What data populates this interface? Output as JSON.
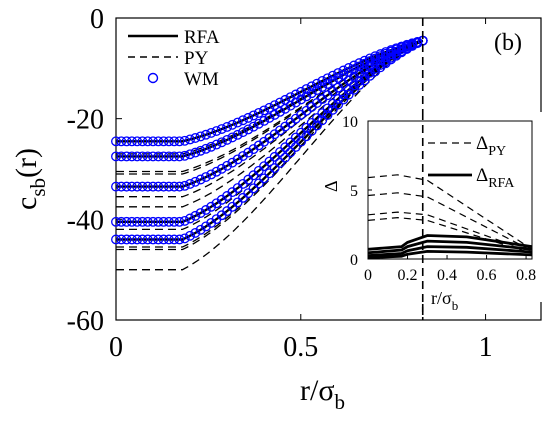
{
  "chart_data": [
    {
      "type": "line",
      "panel_label": "(b)",
      "xlabel": "r/σ",
      "xlabel_sub": "b",
      "ylabel": "c",
      "ylabel_sub": "sb",
      "ylabel_suffix": "(r)",
      "xlim": [
        0,
        1.15
      ],
      "ylim": [
        -60,
        0
      ],
      "xticks": [
        0,
        0.5,
        1
      ],
      "xtick_labels": [
        "0",
        "0.5",
        "1"
      ],
      "yticks": [
        -60,
        -40,
        -20,
        0
      ],
      "ytick_labels": [
        "-60",
        "-40",
        "-20",
        "0"
      ],
      "vline_x": 0.83,
      "legend": {
        "placement": "top-left",
        "entries": [
          {
            "label": "RFA",
            "style": "solid"
          },
          {
            "label": "PY",
            "style": "dashed"
          },
          {
            "label": "WM",
            "style": "circle-marker"
          }
        ]
      },
      "x_end": 0.83,
      "y_end": -4.5,
      "x_knee": 0.18,
      "series": [
        {
          "model": "RFA",
          "plateau": [
            -24.5,
            -27.5,
            -33.5,
            -40.5,
            -44
          ]
        },
        {
          "model": "PY",
          "plateau": [
            -27,
            -30.5,
            -37.5,
            -45.5,
            -50
          ]
        },
        {
          "model": "PY",
          "plateau": [
            -31,
            -35.5,
            -42,
            -46
          ]
        },
        {
          "model": "WM",
          "plateau": [
            -24.5,
            -27.5,
            -33.5,
            -40.5,
            -44
          ]
        }
      ],
      "series_colors": {
        "RFA": "#000000",
        "PY": "#000000",
        "WM": "#0000ff"
      }
    },
    {
      "type": "line",
      "xlabel": "r/σ",
      "xlabel_sub": "b",
      "ylabel": "Δ",
      "xlim": [
        0,
        0.83
      ],
      "ylim": [
        0,
        10
      ],
      "xticks": [
        0,
        0.2,
        0.4,
        0.6,
        0.8
      ],
      "xtick_labels": [
        "0",
        "0.2",
        "0.4",
        "0.6",
        "0.8"
      ],
      "yticks": [
        0,
        5,
        10
      ],
      "ytick_labels": [
        "0",
        "5",
        "10"
      ],
      "legend": {
        "placement": "top-right",
        "entries": [
          {
            "label": "Δ",
            "sub": "PY",
            "style": "dashed"
          },
          {
            "label": "Δ",
            "sub": "RFA",
            "style": "solid"
          }
        ]
      },
      "series": [
        {
          "name": "Δ PY",
          "style": "dashed",
          "x": [
            0,
            0.15,
            0.3,
            0.83
          ],
          "y": [
            5.9,
            6.1,
            5.7,
            0.7
          ]
        },
        {
          "name": "Δ PY",
          "style": "dashed",
          "x": [
            0,
            0.15,
            0.3,
            0.83
          ],
          "y": [
            4.6,
            4.8,
            4.5,
            0.6
          ]
        },
        {
          "name": "Δ PY",
          "style": "dashed",
          "x": [
            0,
            0.15,
            0.3,
            0.83
          ],
          "y": [
            3.2,
            3.4,
            3.2,
            0.5
          ]
        },
        {
          "name": "Δ PY",
          "style": "dashed",
          "x": [
            0,
            0.15,
            0.3,
            0.83
          ],
          "y": [
            2.8,
            3.0,
            2.8,
            0.4
          ]
        },
        {
          "name": "Δ RFA",
          "style": "solid",
          "x": [
            0,
            0.17,
            0.2,
            0.3,
            0.5,
            0.83
          ],
          "y": [
            0.7,
            0.9,
            1.2,
            1.7,
            1.6,
            0.9
          ]
        },
        {
          "name": "Δ RFA",
          "style": "solid",
          "x": [
            0,
            0.17,
            0.2,
            0.3,
            0.5,
            0.83
          ],
          "y": [
            0.45,
            0.65,
            0.9,
            1.3,
            1.2,
            0.7
          ]
        },
        {
          "name": "Δ RFA",
          "style": "solid",
          "x": [
            0,
            0.17,
            0.2,
            0.3,
            0.5,
            0.83
          ],
          "y": [
            0.25,
            0.4,
            0.6,
            0.9,
            0.85,
            0.5
          ]
        },
        {
          "name": "Δ RFA",
          "style": "solid",
          "x": [
            0,
            0.17,
            0.2,
            0.3,
            0.5,
            0.83
          ],
          "y": [
            0.1,
            0.2,
            0.35,
            0.55,
            0.5,
            0.3
          ]
        }
      ]
    }
  ]
}
